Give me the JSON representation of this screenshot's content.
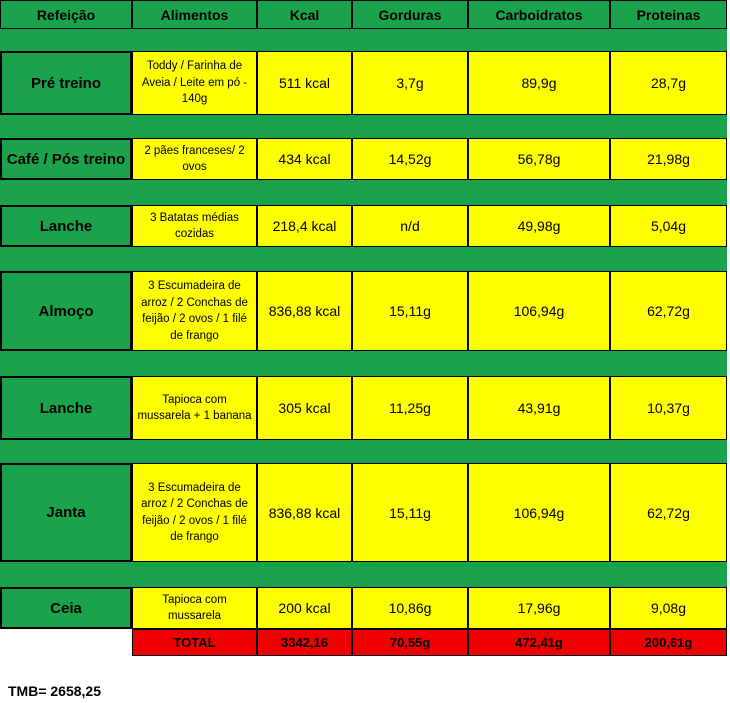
{
  "headers": [
    "Refeição",
    "Alimentos",
    "Kcal",
    "Gorduras",
    "Carboidratos",
    "Proteinas"
  ],
  "meals": [
    {
      "refeicao": "Pré treino",
      "alimentos": "Toddy / Farinha de Aveia / Leite em pó - 140g",
      "kcal": "511 kcal",
      "gorduras": "3,7g",
      "carboidratos": "89,9g",
      "proteinas": "28,7g"
    },
    {
      "refeicao": "Café / Pós treino",
      "alimentos": "2 pães franceses/ 2 ovos",
      "kcal": "434 kcal",
      "gorduras": "14,52g",
      "carboidratos": "56,78g",
      "proteinas": "21,98g"
    },
    {
      "refeicao": "Lanche",
      "alimentos": "3 Batatas médias cozidas",
      "kcal": "218,4 kcal",
      "gorduras": "n/d",
      "carboidratos": "49,98g",
      "proteinas": "5,04g"
    },
    {
      "refeicao": "Almoço",
      "alimentos": "3 Escumadeira de arroz / 2 Conchas de feijão / 2 ovos / 1 filé de frango",
      "kcal": "836,88 kcal",
      "gorduras": "15,11g",
      "carboidratos": "106,94g",
      "proteinas": "62,72g"
    },
    {
      "refeicao": "Lanche",
      "alimentos": "Tapioca com mussarela + 1 banana",
      "kcal": "305 kcal",
      "gorduras": "11,25g",
      "carboidratos": "43,91g",
      "proteinas": "10,37g"
    },
    {
      "refeicao": "Janta",
      "alimentos": "3 Escumadeira de arroz / 2 Conchas de feijão / 2 ovos / 1 filé de frango",
      "kcal": "836,88 kcal",
      "gorduras": "15,11g",
      "carboidratos": "106,94g",
      "proteinas": "62,72g"
    },
    {
      "refeicao": "Ceia",
      "alimentos": "Tapioca com mussarela",
      "kcal": "200 kcal",
      "gorduras": "10,86g",
      "carboidratos": "17,96g",
      "proteinas": "9,08g"
    }
  ],
  "total": {
    "label": "TOTAL",
    "kcal": "3342,16",
    "gorduras": "70,55g",
    "carboidratos": "472,41g",
    "proteinas": "200,61g"
  },
  "tmb": "TMB= 2658,25",
  "colors": {
    "green": "#1aa34a",
    "yellow": "#ffff00",
    "red": "#ee0000"
  }
}
